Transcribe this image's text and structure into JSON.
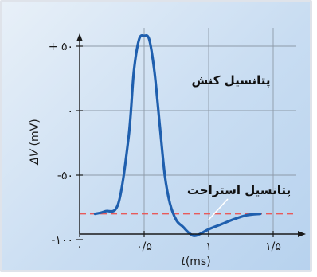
{
  "chart_data": {
    "type": "line",
    "title": "",
    "xlabel_var": "t",
    "xlabel_unit": "(ms)",
    "ylabel_var": "ΔV",
    "ylabel_unit": "(mV)",
    "xlim": [
      0,
      2
    ],
    "ylim": [
      -100,
      70
    ],
    "x_ticks": [
      {
        "value": 0,
        "label": "۰"
      },
      {
        "value": 0.5,
        "label": "۰/۵"
      },
      {
        "value": 1,
        "label": "۱"
      },
      {
        "value": 1.5,
        "label": "۱/۵"
      }
    ],
    "y_ticks": [
      {
        "value": 50,
        "label": "+ ۵۰"
      },
      {
        "value": 0,
        "label": "۰"
      },
      {
        "value": -50,
        "label": "-۵۰"
      },
      {
        "value": -100,
        "label": "-۱۰۰"
      }
    ],
    "grid": true,
    "series": [
      {
        "color": "#1f5fae",
        "x": [
          0.12,
          0.2,
          0.3,
          0.38,
          0.42,
          0.46,
          0.5,
          0.54,
          0.58,
          0.62,
          0.66,
          0.7,
          0.75,
          0.8,
          0.85,
          0.9,
          1.0,
          1.1,
          1.2,
          1.3,
          1.4
        ],
        "y": [
          -80,
          -78,
          -72,
          -20,
          30,
          55,
          58,
          55,
          30,
          -10,
          -50,
          -72,
          -85,
          -90,
          -95,
          -97,
          -92,
          -88,
          -84,
          -81,
          -80
        ]
      }
    ],
    "reference_line": {
      "y": -80,
      "color": "#e85a5a"
    },
    "annotations": [
      {
        "text": "پتانسیل کنش"
      },
      {
        "text": "پتانسیل استراحت"
      }
    ]
  }
}
